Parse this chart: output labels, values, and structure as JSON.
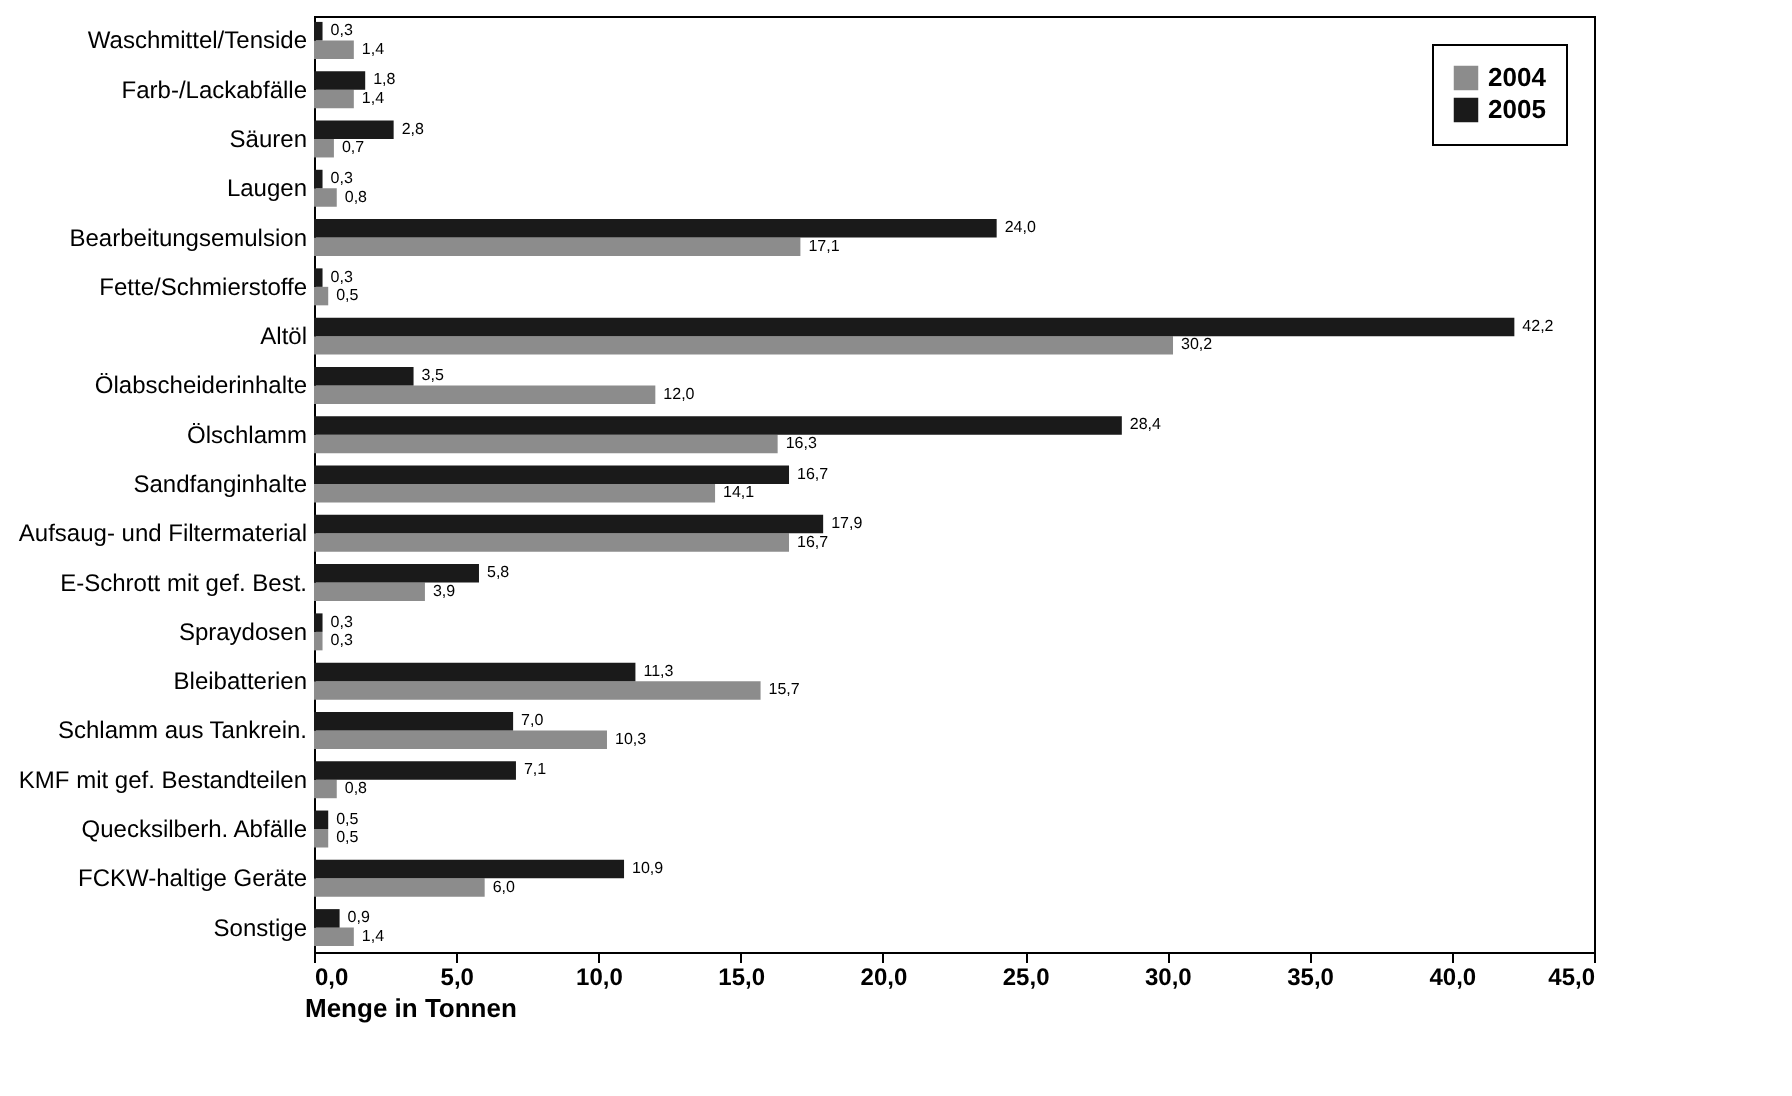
{
  "chart_data": {
    "type": "bar",
    "orientation": "horizontal",
    "xlabel": "Menge in Tonnen",
    "categories": [
      "Waschmittel/Tenside",
      "Farb-/Lackabfälle",
      "Säuren",
      "Laugen",
      "Bearbeitungsemulsion",
      "Fette/Schmierstoffe",
      "Altöl",
      "Ölabscheiderinhalte",
      "Ölschlamm",
      "Sandfanginhalte",
      "Aufsaug- und Filtermaterial",
      "E-Schrott mit gef. Best.",
      "Spraydosen",
      "Bleibatterien",
      "Schlamm aus Tankrein.",
      "KMF mit gef. Bestandteilen",
      "Quecksilberh. Abfälle",
      "FCKW-haltige Geräte",
      "Sonstige"
    ],
    "series": [
      {
        "name": "2004",
        "color": "#8c8c8c",
        "values": [
          1.4,
          1.4,
          0.7,
          0.8,
          17.1,
          0.5,
          30.2,
          12.0,
          16.3,
          14.1,
          16.7,
          3.9,
          0.3,
          15.7,
          10.3,
          0.8,
          0.5,
          6.0,
          1.4
        ],
        "value_labels": [
          "1,4",
          "1,4",
          "0,7",
          "0,8",
          "17,1",
          "0,5",
          "30,2",
          "12,0",
          "16,3",
          "14,1",
          "16,7",
          "3,9",
          "0,3",
          "15,7",
          "10,3",
          "0,8",
          "0,5",
          "6,0",
          "1,4"
        ]
      },
      {
        "name": "2005",
        "color": "#1a1a1a",
        "values": [
          0.3,
          1.8,
          2.8,
          0.3,
          24.0,
          0.3,
          42.2,
          3.5,
          28.4,
          16.7,
          17.9,
          5.8,
          0.3,
          11.3,
          7.0,
          7.1,
          0.5,
          10.9,
          0.9
        ],
        "value_labels": [
          "0,3",
          "1,8",
          "2,8",
          "0,3",
          "24,0",
          "0,3",
          "42,2",
          "3,5",
          "28,4",
          "16,7",
          "17,9",
          "5,8",
          "0,3",
          "11,3",
          "7,0",
          "7,1",
          "0,5",
          "10,9",
          "0,9"
        ]
      }
    ],
    "xlim": [
      0,
      45
    ],
    "xticks": [
      {
        "value": 0,
        "label": "0,0"
      },
      {
        "value": 5,
        "label": "5,0"
      },
      {
        "value": 10,
        "label": "10,0"
      },
      {
        "value": 15,
        "label": "15,0"
      },
      {
        "value": 20,
        "label": "20,0"
      },
      {
        "value": 25,
        "label": "25,0"
      },
      {
        "value": 30,
        "label": "30,0"
      },
      {
        "value": 35,
        "label": "35,0"
      },
      {
        "value": 40,
        "label": "40,0"
      },
      {
        "value": 45,
        "label": "45,0"
      }
    ],
    "legend": "top right"
  }
}
